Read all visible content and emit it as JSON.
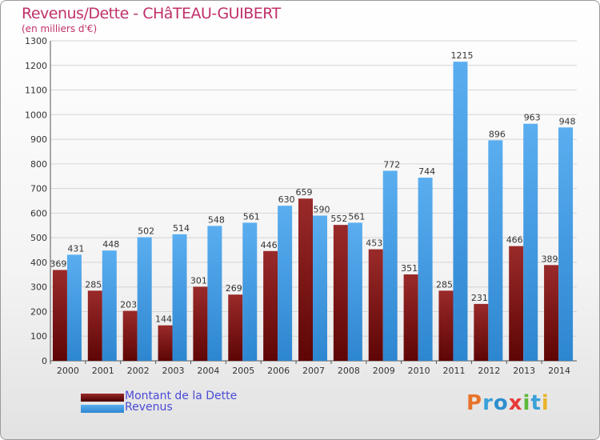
{
  "header": {
    "title": "Revenus/Dette - CHâTEAU-GUIBERT",
    "subtitle": "(en milliers d'€)"
  },
  "legend": {
    "items": [
      {
        "label": "Montant de la Dette",
        "color": "#8b1a1a"
      },
      {
        "label": "Revenus",
        "color": "#3f9fe8"
      }
    ]
  },
  "logo": {
    "letters": [
      "P",
      "r",
      "o",
      "x",
      "i",
      "t",
      "i"
    ],
    "colors": [
      "#e8742a",
      "#3aa0d8",
      "#2f8fcf",
      "#e83a3a",
      "#5cb83a",
      "#3aa0d8",
      "#e8b42a"
    ]
  },
  "chart_data": {
    "type": "bar",
    "title": "Revenus/Dette - CHâTEAU-GUIBERT",
    "subtitle": "(en milliers d'€)",
    "categories": [
      "2000",
      "2001",
      "2002",
      "2003",
      "2004",
      "2005",
      "2006",
      "2007",
      "2008",
      "2009",
      "2010",
      "2011",
      "2012",
      "2013",
      "2014"
    ],
    "series": [
      {
        "name": "Montant de la Dette",
        "color": "#8b1a1a",
        "values": [
          369,
          285,
          203,
          144,
          301,
          269,
          446,
          659,
          552,
          453,
          351,
          285,
          231,
          466,
          389
        ]
      },
      {
        "name": "Revenus",
        "color": "#3f9fe8",
        "values": [
          431,
          448,
          502,
          514,
          548,
          561,
          630,
          590,
          561,
          772,
          744,
          1215,
          896,
          963,
          948
        ]
      }
    ],
    "ylim": [
      0,
      1300
    ],
    "yticks": [
      0,
      100,
      200,
      300,
      400,
      500,
      600,
      700,
      800,
      900,
      1000,
      1100,
      1200,
      1300
    ],
    "grid": true,
    "legend_position": "bottom-left"
  }
}
